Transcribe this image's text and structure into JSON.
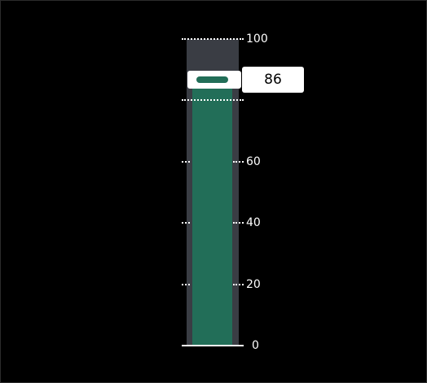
{
  "meter": {
    "min": 0,
    "max": 100,
    "value": 86,
    "value_label": "86",
    "fill_color": "#226e58",
    "track_color": "#3a3d44",
    "ticks": [
      {
        "value": 100,
        "label": "100"
      },
      {
        "value": 80,
        "label": ""
      },
      {
        "value": 60,
        "label": "60"
      },
      {
        "value": 40,
        "label": "40"
      },
      {
        "value": 20,
        "label": "20"
      },
      {
        "value": 0,
        "label": "0"
      }
    ]
  }
}
